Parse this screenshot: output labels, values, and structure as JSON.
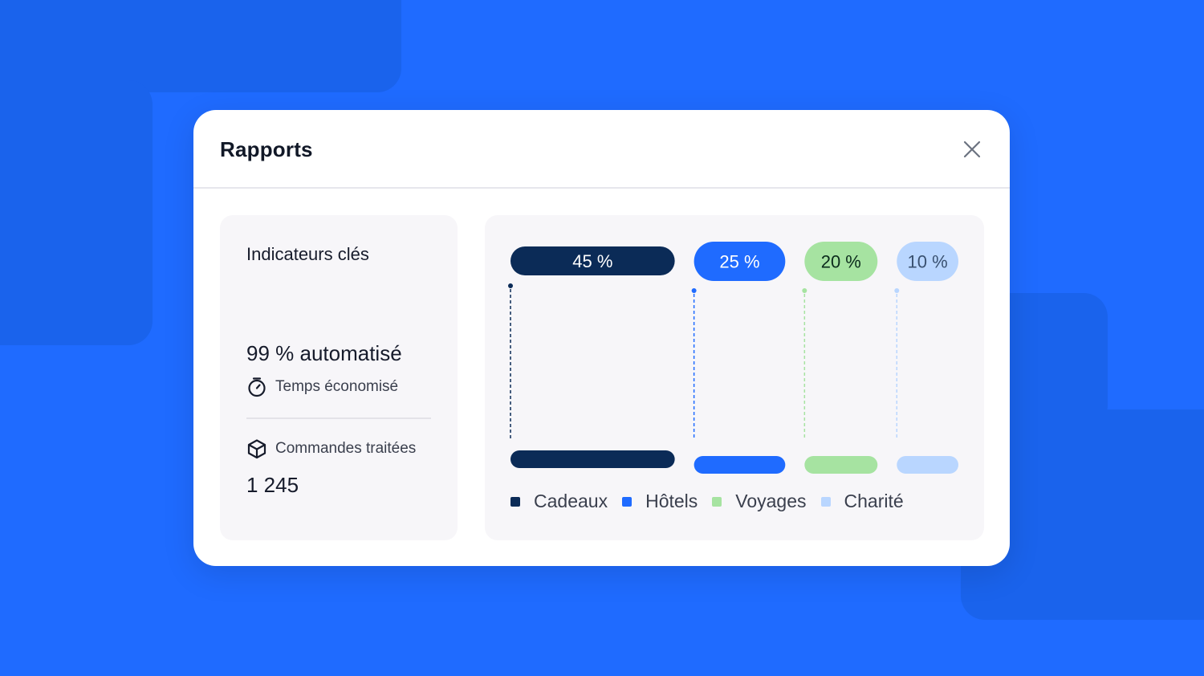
{
  "modal": {
    "title": "Rapports",
    "close_icon": "close-icon"
  },
  "kpi": {
    "title": "Indicateurs clés",
    "automation_value": "99 % automatisé",
    "time_saved_label": "Temps économisé",
    "time_icon": "stopwatch-icon",
    "orders_label": "Commandes traitées",
    "orders_icon": "box-icon",
    "orders_count": "1 245"
  },
  "chart_data": {
    "type": "bar",
    "categories": [
      "Cadeaux",
      "Hôtels",
      "Voyages",
      "Charité"
    ],
    "values": [
      45,
      25,
      20,
      10
    ],
    "value_labels": [
      "45 %",
      "25 %",
      "20 %",
      "10 %"
    ],
    "colors": [
      "#0b2b57",
      "#1f6bff",
      "#a6e3a1",
      "#b9d6ff"
    ],
    "label_text_colors": [
      "#ffffff",
      "#ffffff",
      "#0b2b1c",
      "#3a5170"
    ],
    "legend_position": "bottom",
    "grid": false
  }
}
